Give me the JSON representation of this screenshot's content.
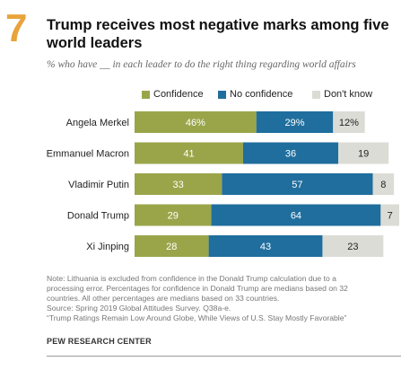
{
  "header": {
    "number": "7",
    "title": "Trump receives most negative marks among five world leaders",
    "subtitle": "% who have __ in each leader to do the right thing regarding world affairs"
  },
  "colors": {
    "accent": "#e8a33b",
    "confidence": "#9aa54a",
    "no_confidence": "#1f6e9e",
    "dont_know": "#dcdcd6"
  },
  "chart_data": {
    "type": "bar",
    "orientation": "horizontal",
    "stacked": true,
    "legend_position": "top",
    "categories": [
      "Angela Merkel",
      "Emmanuel Macron",
      "Vladimir Putin",
      "Donald Trump",
      "Xi Jinping"
    ],
    "series": [
      {
        "name": "Confidence",
        "values": [
          46,
          41,
          33,
          29,
          28
        ],
        "labels": [
          "46%",
          "41",
          "33",
          "29",
          "28"
        ]
      },
      {
        "name": "No confidence",
        "values": [
          29,
          36,
          57,
          64,
          43
        ],
        "labels": [
          "29%",
          "36",
          "57",
          "64",
          "43"
        ]
      },
      {
        "name": "Don't know",
        "values": [
          12,
          19,
          8,
          7,
          23
        ],
        "labels": [
          "12%",
          "19",
          "8",
          "7",
          "23"
        ]
      }
    ]
  },
  "footer": {
    "notes": [
      "Note: Lithuania is excluded from confidence in the Donald Trump calculation due to a",
      "processing error. Percentages for confidence in Donald Trump are medians based on 32",
      "countries. All other percentages are medians based on 33 countries.",
      "Source: Spring 2019 Global Attitudes Survey. Q38a-e.",
      "“Trump Ratings Remain Low Around Globe, While Views of U.S. Stay Mostly Favorable”"
    ],
    "org": "PEW RESEARCH CENTER"
  }
}
